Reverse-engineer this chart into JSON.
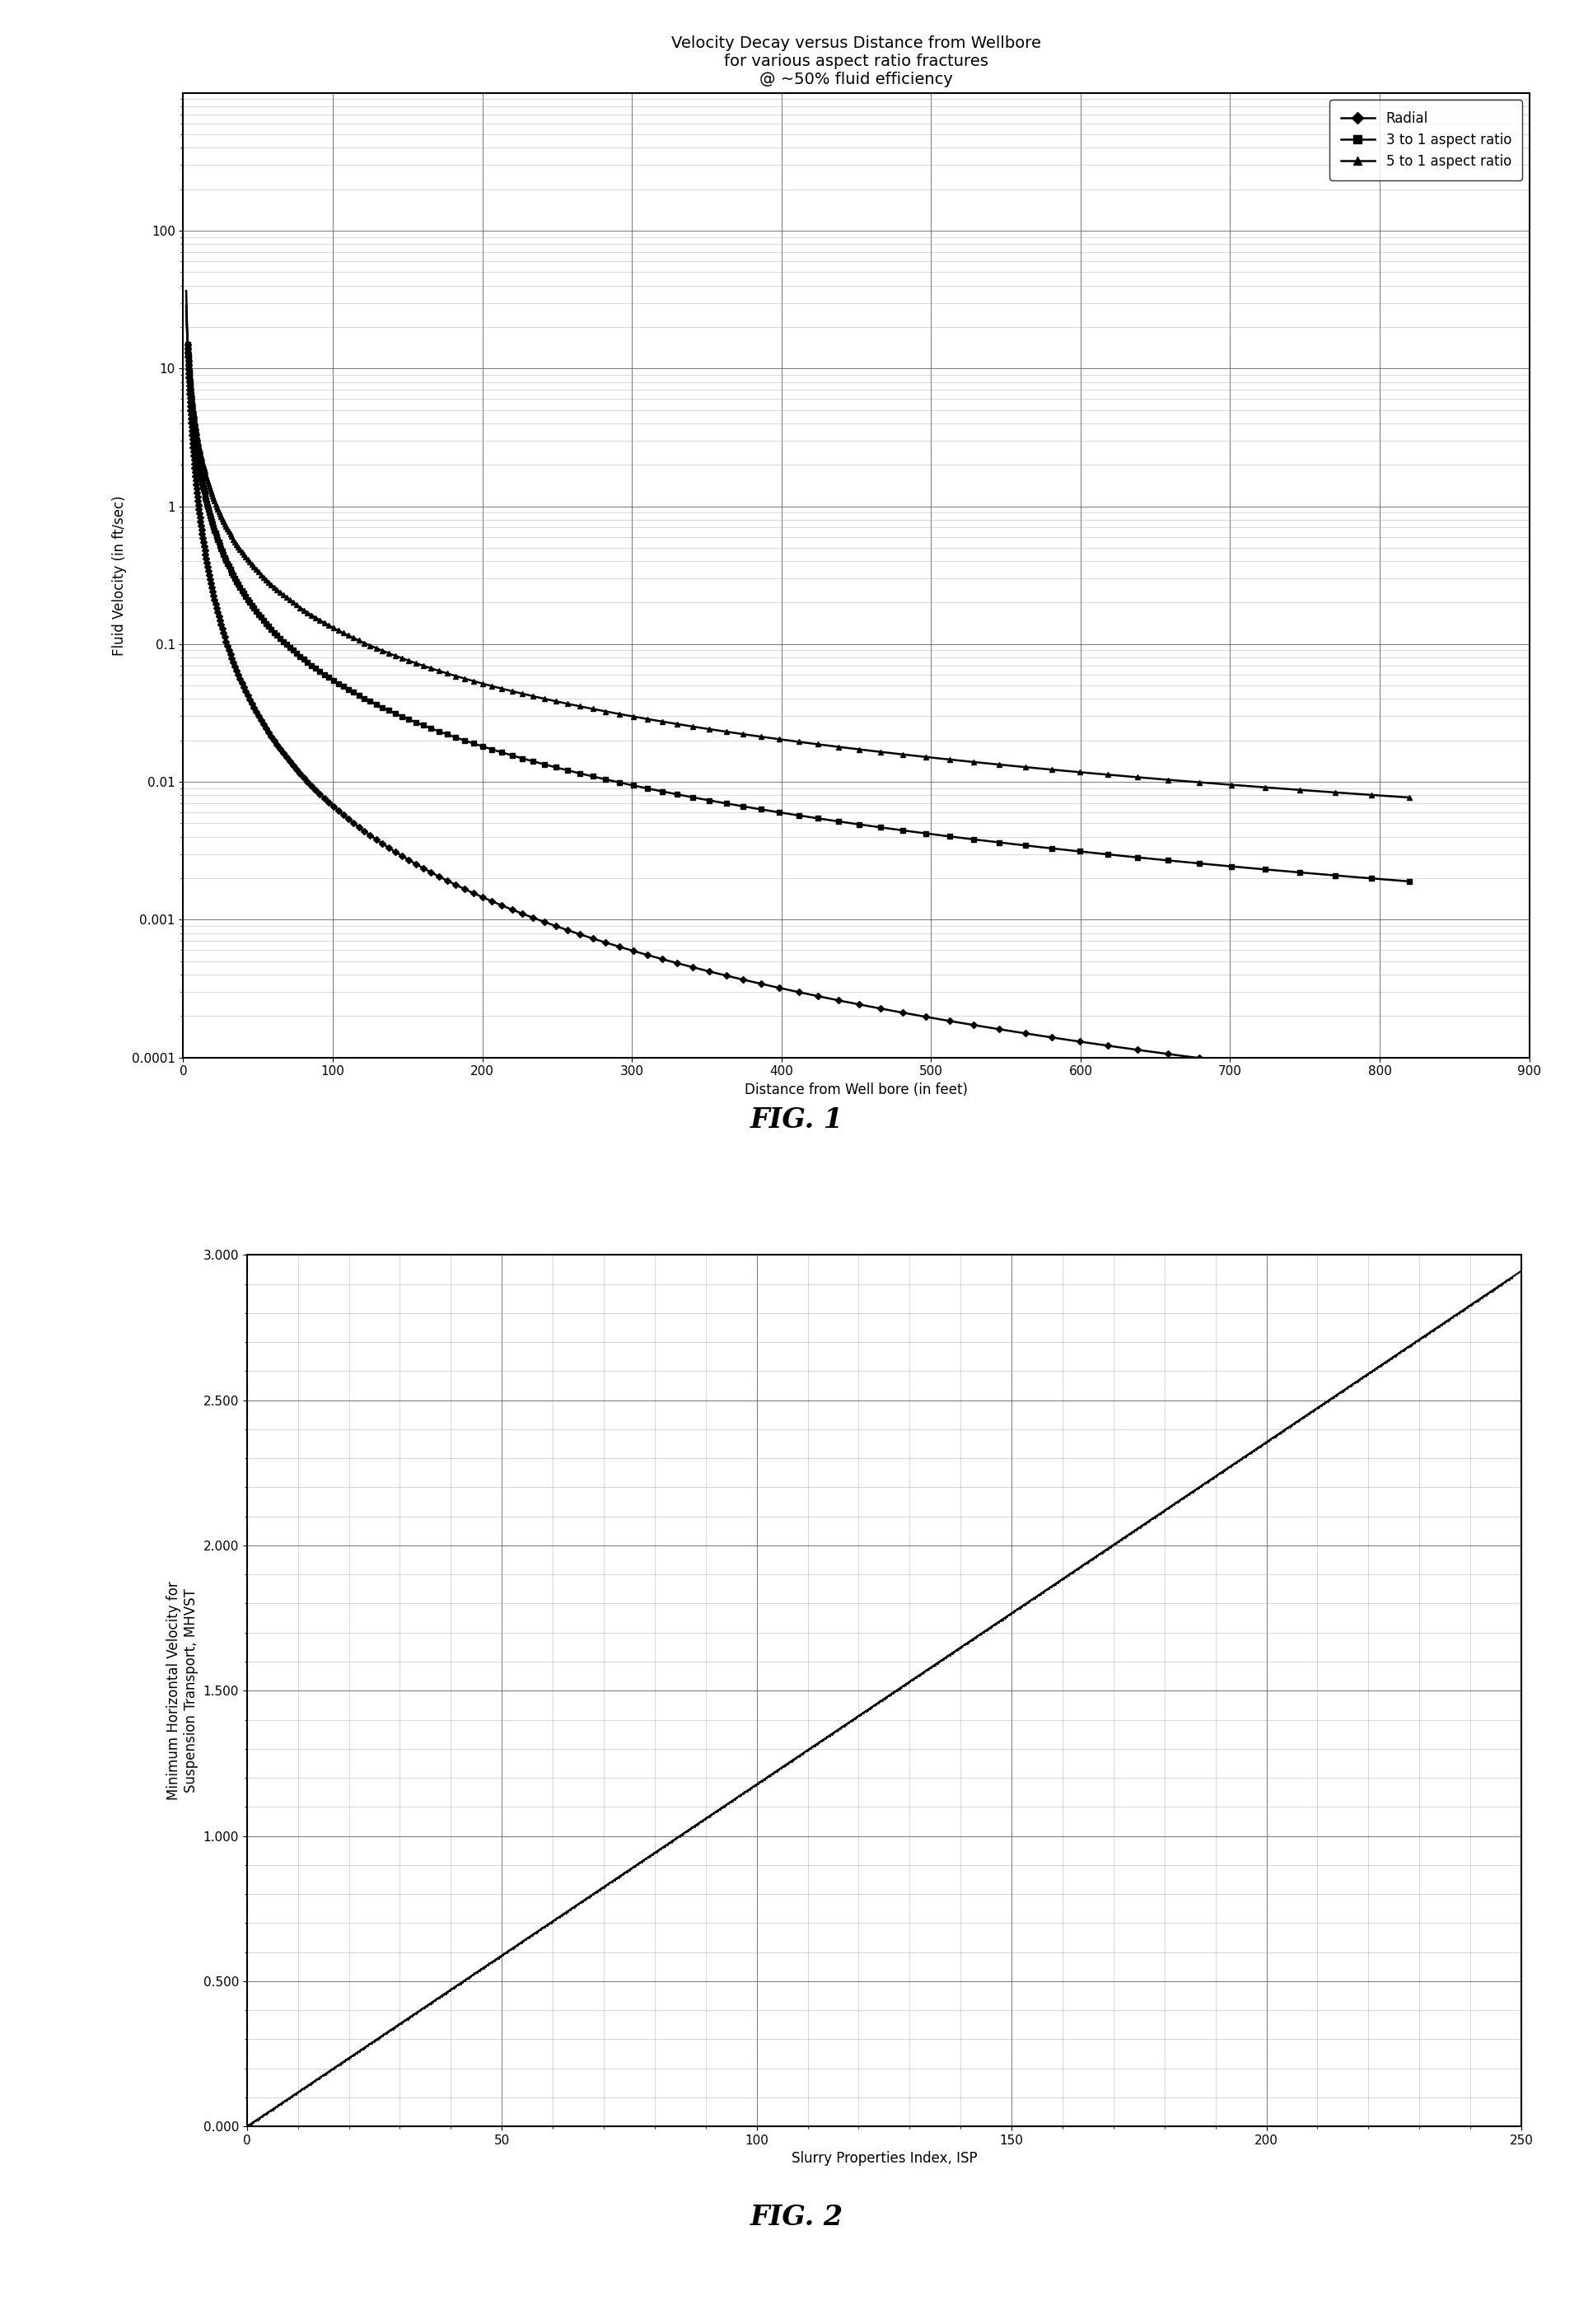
{
  "fig1": {
    "title": "Velocity Decay versus Distance from Wellbore\nfor various aspect ratio fractures\n@ ~50% fluid efficiency",
    "xlabel": "Distance from Well bore (in feet)",
    "ylabel": "Fluid Velocity (in ft/sec)",
    "xlim": [
      0,
      900
    ],
    "ylim_log": [
      0.0001,
      1000
    ],
    "ytick_vals": [
      0.0001,
      0.001,
      0.01,
      0.1,
      1,
      10,
      100
    ],
    "ytick_labels": [
      "0.0001",
      "0.001",
      "0.01",
      "0.1",
      "1",
      "10",
      "100"
    ],
    "xticks": [
      0,
      100,
      200,
      300,
      400,
      500,
      600,
      700,
      800,
      900
    ],
    "radial_label": "Radial",
    "aspect3_label": "3 to 1 aspect ratio",
    "aspect5_label": "5 to 1 aspect ratio",
    "fig_label": "FIG. 1",
    "line_color": "#000000",
    "bg_color": "#ffffff",
    "radial_n": 2.2,
    "aspect3_n": 1.6,
    "aspect5_n": 1.35,
    "start_x": 3,
    "start_y": 15.0,
    "title_fontsize": 14,
    "label_fontsize": 12,
    "tick_fontsize": 11,
    "legend_fontsize": 12
  },
  "fig2": {
    "xlabel": "Slurry Properties Index, ISP",
    "ylabel": "Minimum Horizontal Velocity for\nSuspension Transport, MHVST",
    "xlim": [
      0,
      250
    ],
    "ylim": [
      0.0,
      3.0
    ],
    "xticks": [
      0,
      50,
      100,
      150,
      200,
      250
    ],
    "yticks": [
      0.0,
      0.5,
      1.0,
      1.5,
      2.0,
      2.5,
      3.0
    ],
    "ytick_labels": [
      "0.000",
      "0.500",
      "1.000",
      "1.500",
      "2.000",
      "2.500",
      "3.000"
    ],
    "slope": 0.01178,
    "intercept": 0.0,
    "fig_label": "FIG. 2",
    "line_color": "#000000",
    "bg_color": "#ffffff",
    "label_fontsize": 12,
    "tick_fontsize": 11
  }
}
